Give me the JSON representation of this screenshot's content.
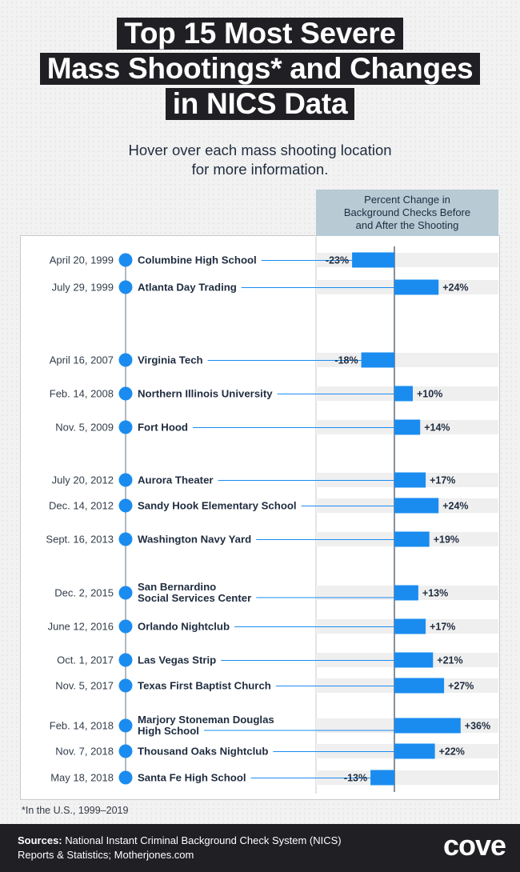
{
  "title": {
    "line1": "Top 15 Most Severe",
    "line2": "Mass Shootings* and Changes",
    "line3": "in NICS Data"
  },
  "subtitle": {
    "line1": "Hover over each mass shooting location",
    "line2": "for more information."
  },
  "column_header": {
    "line1": "Percent Change in",
    "line2": "Background Checks Before",
    "line3": "and After the Shooting"
  },
  "footnote": "*In the U.S., 1999–2019",
  "footer": {
    "sources_label": "Sources:",
    "sources_line1": "National Instant Criminal Background Check System (NICS)",
    "sources_line2": "Reports & Statistics; Motherjones.com",
    "logo": "cove"
  },
  "colors": {
    "bar": "#1a8cf0",
    "timeline_dot": "#1a8cf0",
    "row_band": "#efefef",
    "title_bg": "#1f1f24"
  },
  "chart_data": {
    "type": "bar",
    "orientation": "horizontal",
    "unit": "%",
    "series": [
      {
        "values": [
          -23,
          24,
          -18,
          10,
          14,
          17,
          24,
          19,
          13,
          17,
          21,
          27,
          36,
          22,
          -13
        ]
      }
    ],
    "rows": [
      {
        "date": "April 20, 1999",
        "name": [
          "Columbine High School"
        ],
        "value": -23,
        "label": "-23%"
      },
      {
        "date": "July 29, 1999",
        "name": [
          "Atlanta Day Trading"
        ],
        "value": 24,
        "label": "+24%"
      },
      {
        "date": "April 16, 2007",
        "name": [
          "Virginia Tech"
        ],
        "value": -18,
        "label": "-18%"
      },
      {
        "date": "Feb. 14, 2008",
        "name": [
          "Northern Illinois University"
        ],
        "value": 10,
        "label": "+10%"
      },
      {
        "date": "Nov. 5, 2009",
        "name": [
          "Fort Hood"
        ],
        "value": 14,
        "label": "+14%"
      },
      {
        "date": "July 20, 2012",
        "name": [
          "Aurora Theater"
        ],
        "value": 17,
        "label": "+17%"
      },
      {
        "date": "Dec. 14, 2012",
        "name": [
          "Sandy Hook Elementary School"
        ],
        "value": 24,
        "label": "+24%"
      },
      {
        "date": "Sept. 16, 2013",
        "name": [
          "Washington Navy Yard"
        ],
        "value": 19,
        "label": "+19%"
      },
      {
        "date": "Dec. 2, 2015",
        "name": [
          "San Bernardino",
          "Social Services Center"
        ],
        "value": 13,
        "label": "+13%"
      },
      {
        "date": "June 12, 2016",
        "name": [
          "Orlando Nightclub"
        ],
        "value": 17,
        "label": "+17%"
      },
      {
        "date": "Oct. 1, 2017",
        "name": [
          "Las Vegas Strip"
        ],
        "value": 21,
        "label": "+21%"
      },
      {
        "date": "Nov. 5, 2017",
        "name": [
          "Texas First Baptist Church"
        ],
        "value": 27,
        "label": "+27%"
      },
      {
        "date": "Feb. 14, 2018",
        "name": [
          "Marjory Stoneman Douglas",
          "High School"
        ],
        "value": 36,
        "label": "+36%"
      },
      {
        "date": "Nov. 7, 2018",
        "name": [
          "Thousand Oaks Nightclub"
        ],
        "value": 22,
        "label": "+22%"
      },
      {
        "date": "May 18, 2018",
        "name": [
          "Santa Fe High School"
        ],
        "value": -13,
        "label": "-13%"
      }
    ]
  }
}
